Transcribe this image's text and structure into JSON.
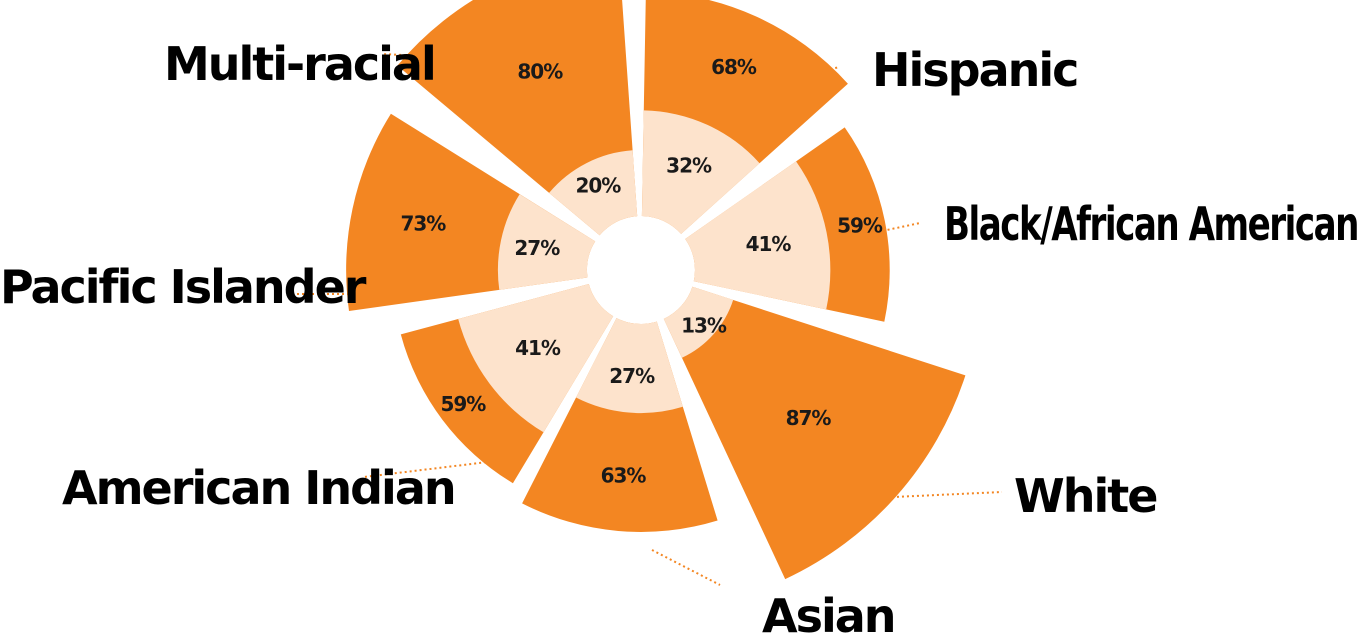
{
  "chart_data": {
    "type": "polar-area",
    "categories": [
      "Hispanic",
      "Black/African American",
      "White",
      "Asian",
      "American Indian",
      "Pacific Islander",
      "Multi-racial"
    ],
    "series": [
      {
        "values": [
          68,
          59,
          87,
          63,
          59,
          73,
          80
        ]
      },
      {
        "values": [
          32,
          41,
          13,
          27,
          41,
          27,
          20
        ]
      }
    ],
    "value_labels_outer": [
      "68%",
      "59%",
      "87%",
      "63%",
      "59%",
      "73%",
      "80%"
    ],
    "value_labels_inner": [
      "32%",
      "41%",
      "13%",
      "27%",
      "41%",
      "27%",
      "20%"
    ],
    "colors": {
      "outer": "#f38622",
      "inner": "#fde3cc",
      "leader": "#f38622",
      "text": "#000000"
    },
    "legend": "none",
    "grid": false
  }
}
